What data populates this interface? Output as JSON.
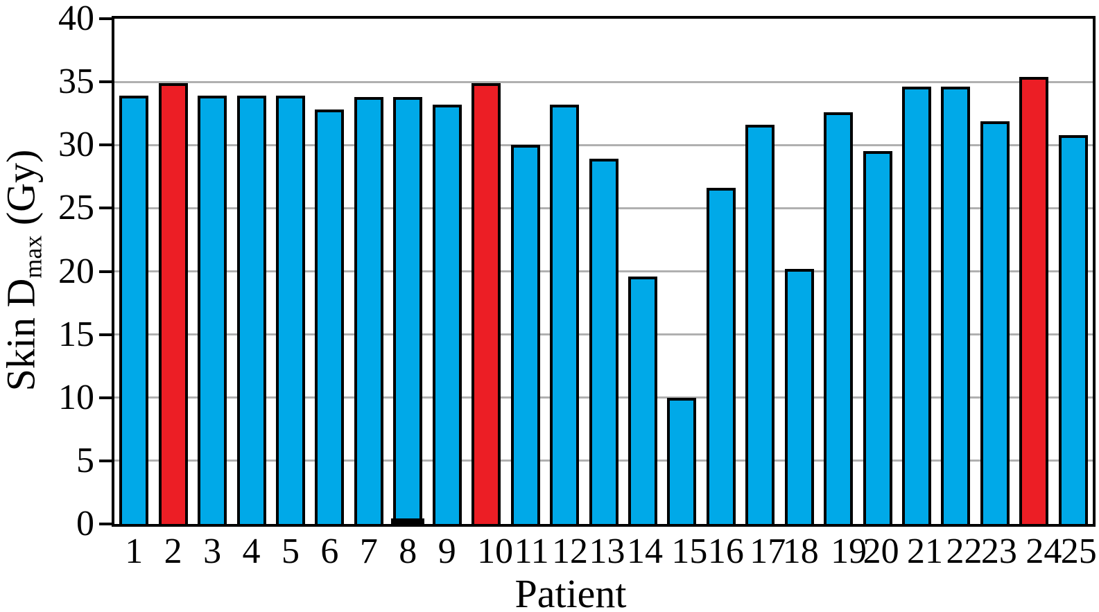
{
  "chart_data": {
    "type": "bar",
    "title": "",
    "xlabel": "Patient",
    "ylabel": "Skin D_max (Gy)",
    "ylabel_parts": {
      "prefix": "Skin D",
      "subscript": "max",
      "suffix": " (Gy)"
    },
    "categories": [
      "1",
      "2",
      "3",
      "4",
      "5",
      "6",
      "7",
      "8",
      "9",
      "10",
      "11",
      "12",
      "13",
      "14",
      "15",
      "16",
      "17",
      "18",
      "19",
      "20",
      "21",
      "22",
      "23",
      "24",
      "25"
    ],
    "values": [
      33.9,
      34.9,
      33.9,
      33.9,
      33.9,
      32.8,
      33.8,
      33.8,
      33.2,
      34.9,
      30.0,
      33.2,
      28.9,
      19.6,
      10.0,
      26.6,
      31.6,
      20.2,
      32.6,
      29.5,
      34.6,
      34.6,
      31.9,
      35.4,
      30.8
    ],
    "highlighted_categories": [
      "2",
      "10",
      "24"
    ],
    "overlay_bar": {
      "category": "8",
      "value": 0.4,
      "color": "#000000"
    },
    "colors": {
      "bar_default": "#00A9E8",
      "bar_highlight": "#EC1E25",
      "bar_border": "#000000",
      "gridline": "#b0b0b0",
      "axis": "#000000"
    },
    "ylim": [
      0,
      40
    ],
    "yticks": [
      0,
      5,
      10,
      15,
      20,
      25,
      30,
      35,
      40
    ],
    "grid": {
      "horizontal": true,
      "at": [
        5,
        10,
        15,
        20,
        25,
        30,
        35
      ]
    },
    "legend": null
  }
}
